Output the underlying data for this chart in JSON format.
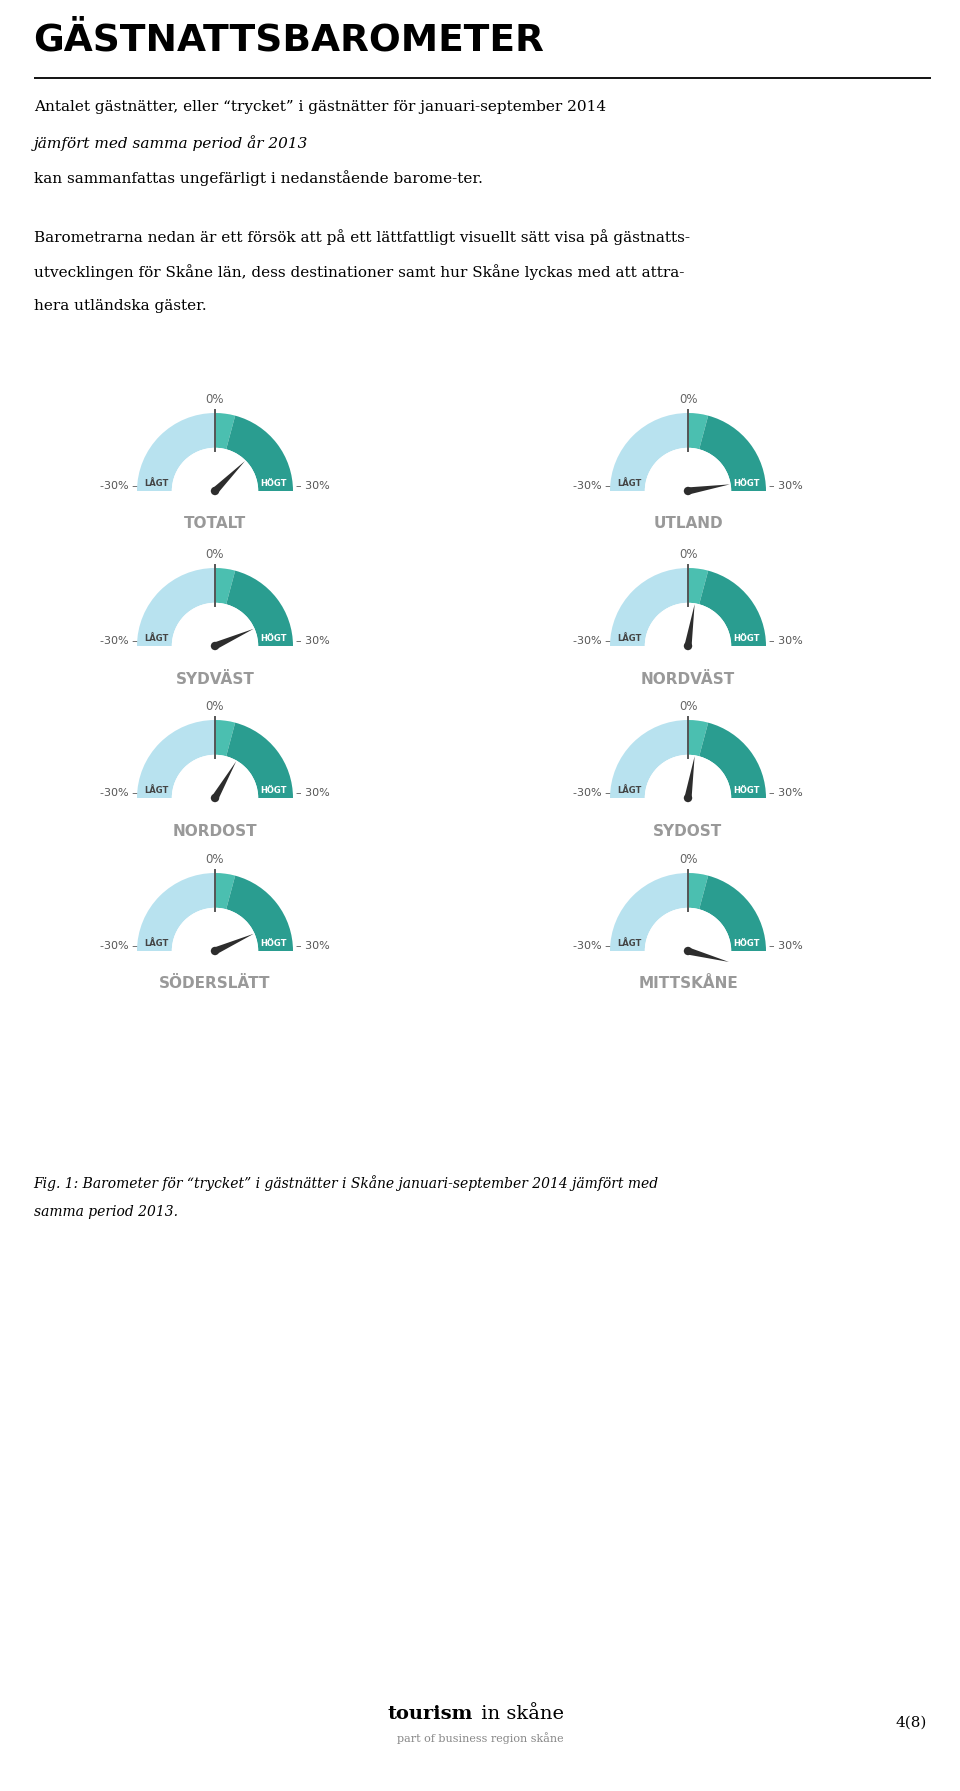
{
  "title": "GÄSTNATTSBAROMETER",
  "para1_line1": "Antalet gästnätter, eller “trycket” i gästnätter för januari-september 2014 ",
  "para1_line2_italic": "jämfört med samma period år 2013",
  "para1_line3": "kan sammanfattas ungefärligt i nedanstående barome-ter.",
  "para2_line1": "Barometrarna nedan är ett försök att på ett lättfattligt visuellt sätt visa på gästnatts-",
  "para2_line2": "utvecklingen för Skåne län, dess destinationer samt hur Skåne lyckas med att attra-",
  "para2_line3": "hera utländska gäster.",
  "fig_caption_line1": "Fig. 1: Barometer för “trycket” i gästnätter i Skåne januari-september 2014 jämfört med",
  "fig_caption_line2": "samma period 2013.",
  "footer_bold": "tourism",
  "footer_light": " in skåne",
  "footer_sub": "part of business region skåne",
  "footer_page": "4(8)",
  "barometers": [
    {
      "label": "TOTALT",
      "needle_pct": 15,
      "row": 0,
      "col": 0
    },
    {
      "label": "UTLAND",
      "needle_pct": 27,
      "row": 0,
      "col": 1
    },
    {
      "label": "SYDVÄST",
      "needle_pct": 22,
      "row": 1,
      "col": 0
    },
    {
      "label": "NORDVÄST",
      "needle_pct": 3,
      "row": 1,
      "col": 1
    },
    {
      "label": "NORDOST",
      "needle_pct": 10,
      "row": 2,
      "col": 0
    },
    {
      "label": "SYDOST",
      "needle_pct": 3,
      "row": 2,
      "col": 1
    },
    {
      "label": "SÖDERSLÄTT",
      "needle_pct": 22,
      "row": 3,
      "col": 0
    },
    {
      "label": "MITTSKÅNE",
      "needle_pct": 35,
      "row": 3,
      "col": 1
    }
  ],
  "color_light_blue": "#b8e2ef",
  "color_teal_mid": "#4bbfb0",
  "color_teal_dark": "#2a9d90",
  "color_needle": "#2d2d2d",
  "color_label_gray": "#888888",
  "color_side_text": "#666666",
  "background": "#ffffff"
}
